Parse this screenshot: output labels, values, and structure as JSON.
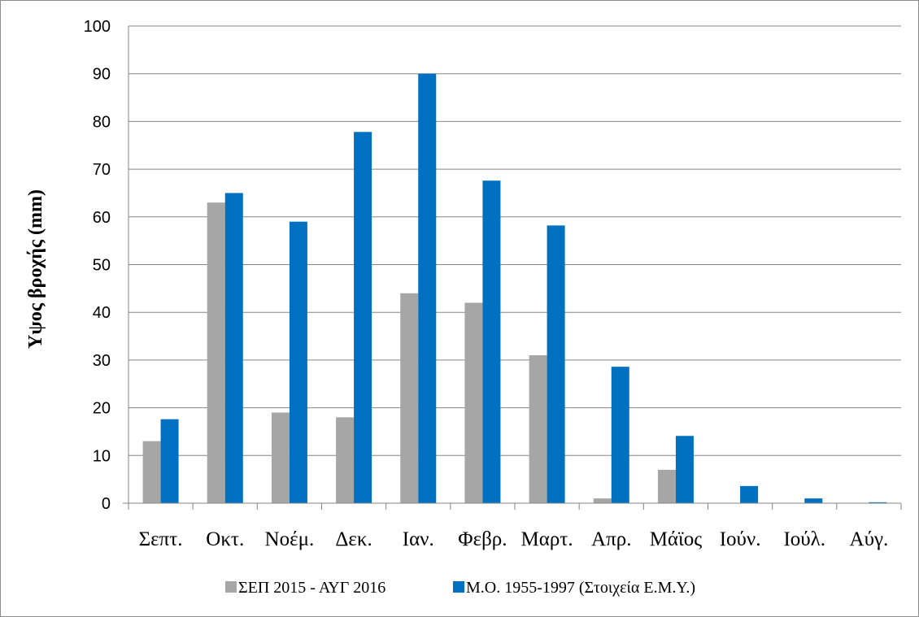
{
  "chart_data": {
    "type": "bar",
    "title": "",
    "xlabel": "",
    "ylabel": "Υψος βροχής (mm)",
    "ylim": [
      0,
      100
    ],
    "yticks": [
      0,
      10,
      20,
      30,
      40,
      50,
      60,
      70,
      80,
      90,
      100
    ],
    "grid": true,
    "legend_position": "bottom",
    "categories": [
      "Σεπτ.",
      "Οκτ.",
      "Νοέμ.",
      "Δεκ.",
      "Ιαν.",
      "Φεβρ.",
      "Μαρτ.",
      "Απρ.",
      "Μάϊος",
      "Ιούν.",
      "Ιούλ.",
      "Αύγ."
    ],
    "series": [
      {
        "name": "ΣΕΠ 2015 - ΑΥΓ 2016",
        "color": "#a6a6a6",
        "values": [
          13,
          63,
          19,
          18,
          44,
          42,
          31,
          1,
          7,
          0,
          0,
          0
        ]
      },
      {
        "name": "Μ.Ο. 1955-1997 (Στοιχεία Ε.Μ.Υ.)",
        "color": "#0070c0",
        "values": [
          17.6,
          65,
          59,
          77.8,
          90,
          67.6,
          58.2,
          28.6,
          14.1,
          3.6,
          1,
          0.2
        ]
      }
    ]
  }
}
